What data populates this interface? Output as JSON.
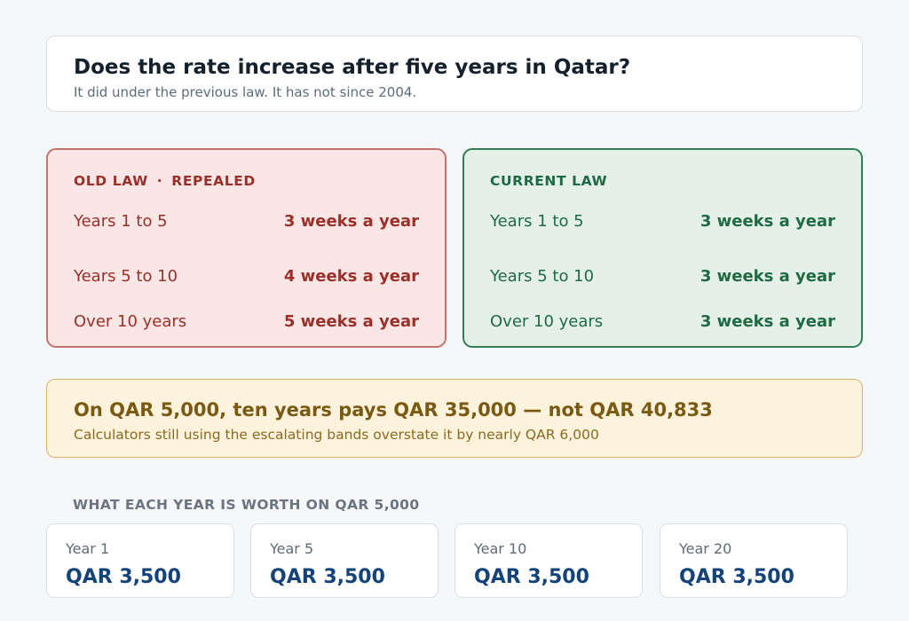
{
  "header": {
    "title": "Does the rate increase after five years in Qatar?",
    "subtitle": "It did under the previous law. It has not since 2004."
  },
  "old_law": {
    "label": "OLD LAW",
    "separator": "·",
    "status": "REPEALED",
    "rows": [
      {
        "label": "Years 1 to 5",
        "value": "3 weeks a year"
      },
      {
        "label": "Years 5 to 10",
        "value": "4 weeks a year"
      },
      {
        "label": "Over 10 years",
        "value": "5 weeks a year"
      }
    ],
    "colors": {
      "background": "#f9e6e5",
      "border": "#c4726b",
      "text": "#99302a"
    }
  },
  "current_law": {
    "label": "CURRENT LAW",
    "rows": [
      {
        "label": "Years 1 to 5",
        "value": "3 weeks a year"
      },
      {
        "label": "Years 5 to 10",
        "value": "3 weeks a year"
      },
      {
        "label": "Over 10 years",
        "value": "3 weeks a year"
      }
    ],
    "colors": {
      "background": "#e5f0e9",
      "border": "#2f8057",
      "text": "#1e6a43"
    }
  },
  "callout": {
    "title": "On QAR 5,000, ten years pays QAR 35,000 — not QAR 40,833",
    "subtitle": "Calculators still using the escalating bands overstate it by nearly QAR 6,000"
  },
  "years_section": {
    "label": "WHAT EACH YEAR IS WORTH ON QAR 5,000",
    "cards": [
      {
        "label": "Year 1",
        "value": "QAR 3,500"
      },
      {
        "label": "Year 5",
        "value": "QAR 3,500"
      },
      {
        "label": "Year 10",
        "value": "QAR 3,500"
      },
      {
        "label": "Year 20",
        "value": "QAR 3,500"
      }
    ]
  }
}
